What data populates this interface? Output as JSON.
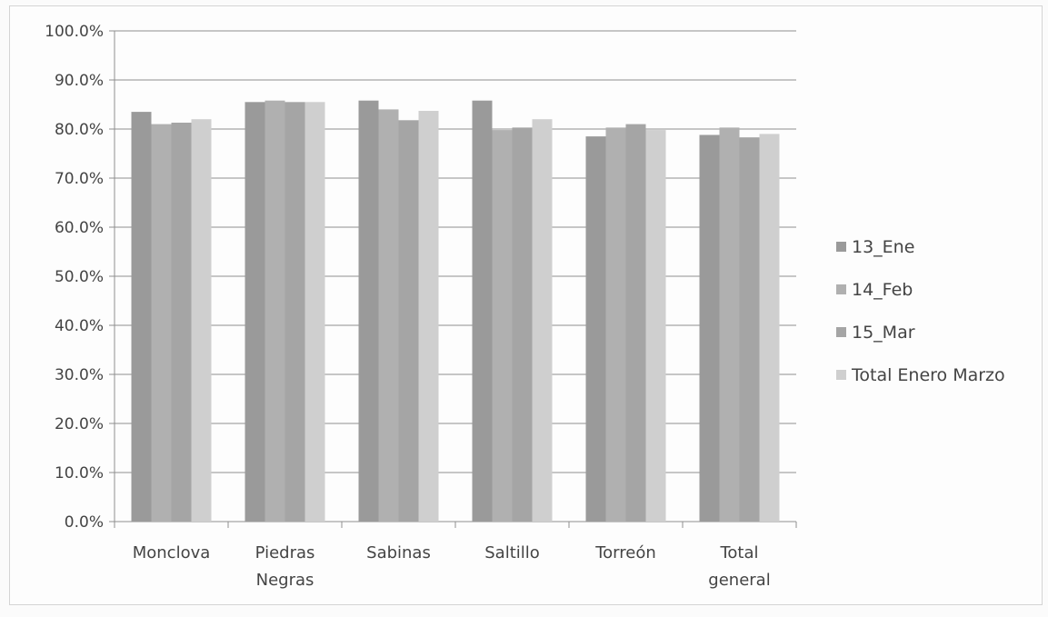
{
  "chart_data": {
    "type": "bar",
    "title": "",
    "xlabel": "",
    "ylabel": "",
    "ylim": [
      0,
      100
    ],
    "y_ticks": [
      "0.0%",
      "10.0%",
      "20.0%",
      "30.0%",
      "40.0%",
      "50.0%",
      "60.0%",
      "70.0%",
      "80.0%",
      "90.0%",
      "100.0%"
    ],
    "categories": [
      [
        "Monclova"
      ],
      [
        "Piedras",
        "Negras"
      ],
      [
        "Sabinas"
      ],
      [
        "Saltillo"
      ],
      [
        "Torreón"
      ],
      [
        "Total",
        "general"
      ]
    ],
    "series": [
      {
        "name": "13_Ene",
        "color": "#9a9a9a",
        "values": [
          83.5,
          85.5,
          85.8,
          85.8,
          78.5,
          78.8
        ]
      },
      {
        "name": "14_Feb",
        "color": "#b0b0b0",
        "values": [
          81.0,
          85.8,
          84.0,
          79.8,
          80.3,
          80.3
        ]
      },
      {
        "name": "15_Mar",
        "color": "#a5a5a5",
        "values": [
          81.3,
          85.5,
          81.8,
          80.3,
          81.0,
          78.3
        ]
      },
      {
        "name": "Total Enero Marzo",
        "color": "#cfcfcf",
        "values": [
          82.0,
          85.5,
          83.7,
          82.0,
          79.8,
          79.0
        ]
      }
    ],
    "grid": true,
    "legend_position": "right"
  }
}
